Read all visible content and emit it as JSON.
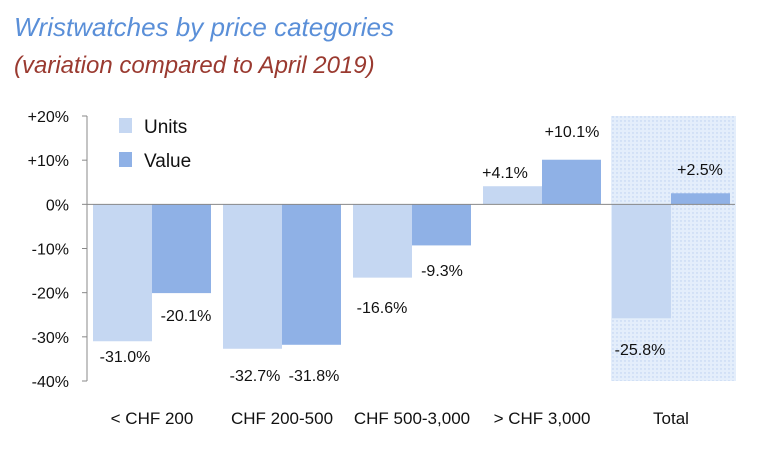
{
  "title": "Wristwatches by price categories",
  "subtitle": "(variation compared to April 2019)",
  "colors": {
    "units": "#c5d7f2",
    "value": "#8fb1e6",
    "highlight": "#e4eefb"
  },
  "chart_data": {
    "type": "bar",
    "categories": [
      "< CHF 200",
      "CHF 200-500",
      "CHF 500-3,000",
      "> CHF 3,000",
      "Total"
    ],
    "series": [
      {
        "name": "Units",
        "values": [
          -31.0,
          -32.7,
          -16.6,
          4.1,
          -25.8
        ],
        "labels": [
          "-31.0%",
          "-32.7%",
          "-16.6%",
          "+4.1%",
          "-25.8%"
        ]
      },
      {
        "name": "Value",
        "values": [
          -20.1,
          -31.8,
          -9.3,
          10.1,
          2.5
        ],
        "labels": [
          "-20.1%",
          "-31.8%",
          "-9.3%",
          "+10.1%",
          "+2.5%"
        ]
      }
    ],
    "ylim": [
      -40,
      20
    ],
    "yticks": [
      20,
      10,
      0,
      -10,
      -20,
      -30,
      -40
    ],
    "ytick_labels": [
      "+20%",
      "+10%",
      "0%",
      "-10%",
      "-20%",
      "-30%",
      "-40%"
    ],
    "legend": "top-left",
    "highlighted_category": "Total",
    "grid": false
  }
}
